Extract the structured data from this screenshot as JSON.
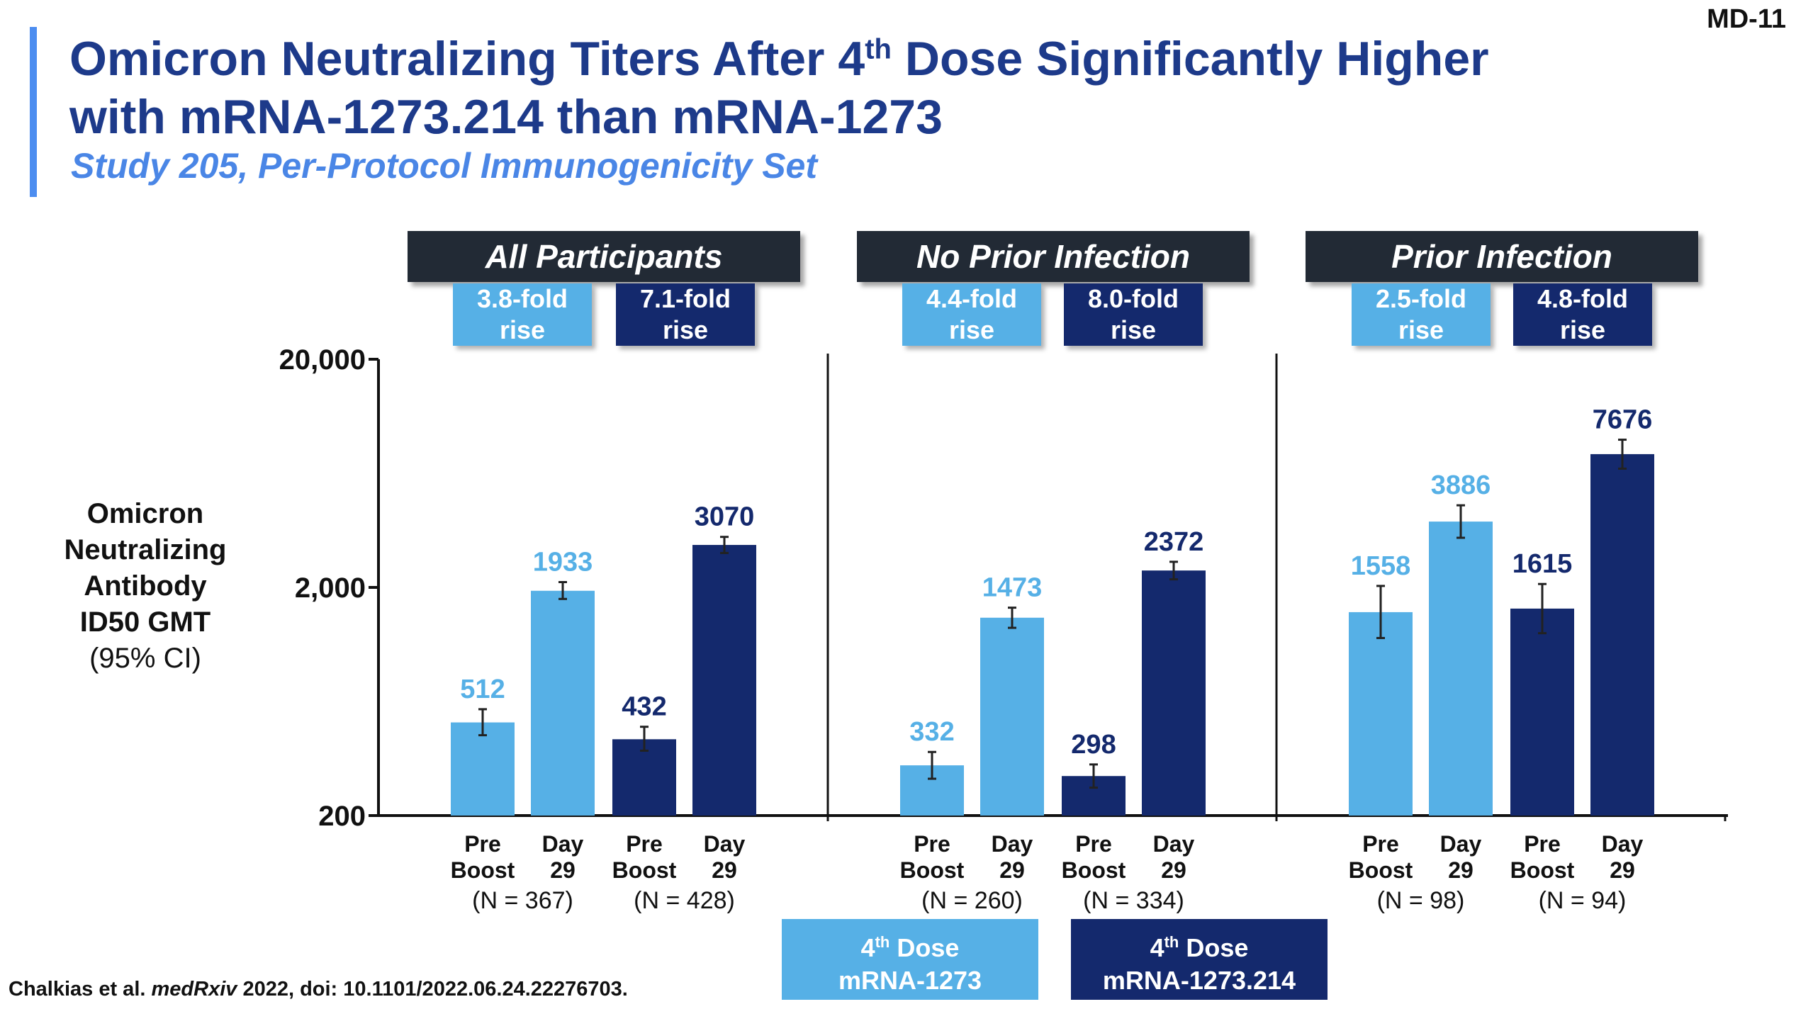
{
  "slide_id": "MD-11",
  "title": {
    "line1_pre": "Omicron Neutralizing Titers After 4",
    "line1_sup": "th",
    "line1_post": " Dose Significantly Higher",
    "line2": "with mRNA-1273.214 than mRNA-1273"
  },
  "subtitle": "Study 205, Per-Protocol Immunogenicity Set",
  "y_axis_label": {
    "lines": [
      "Omicron",
      "Neutralizing",
      "Antibody",
      "ID50 GMT"
    ],
    "ci": "(95% CI)"
  },
  "legend": {
    "light": {
      "sup_pre": "4",
      "sup": "th",
      "sup_post": " Dose",
      "line2": "mRNA-1273"
    },
    "dark": {
      "sup_pre": "4",
      "sup": "th",
      "sup_post": " Dose",
      "line2": "mRNA-1273.214"
    }
  },
  "citation": {
    "pre": "Chalkias et al. ",
    "journal": "medRxiv",
    "post": " 2022, doi: 10.1101/2022.06.24.22276703."
  },
  "colors": {
    "light": "#56b0e6",
    "dark": "#14296d",
    "header_bg": "#222a35",
    "title": "#1d3a8a",
    "subtitle": "#4a86e6"
  },
  "chart_data": {
    "type": "bar",
    "y_scale": "log",
    "ylim": [
      200,
      20000
    ],
    "yticks": [
      200,
      2000,
      20000
    ],
    "ytick_labels": [
      "200",
      "2,000",
      "20,000"
    ],
    "ylabel": "Omicron Neutralizing Antibody ID50 GMT (95% CI)",
    "panels": [
      {
        "title": "All Participants",
        "fold_rises": [
          {
            "series": "mRNA-1273",
            "line1": "3.8-fold",
            "line2": "rise"
          },
          {
            "series": "mRNA-1273.214",
            "line1": "7.1-fold",
            "line2": "rise"
          }
        ],
        "groups": [
          {
            "series": "mRNA-1273",
            "n_label": "(N = 367)",
            "bars": [
              {
                "cat1": "Pre",
                "cat2": "Boost",
                "value": 512,
                "label": "512",
                "ci": [
                  450,
                  585
                ]
              },
              {
                "cat1": "Day",
                "cat2": "29",
                "value": 1933,
                "label": "1933",
                "ci": [
                  1780,
                  2110
                ]
              }
            ]
          },
          {
            "series": "mRNA-1273.214",
            "n_label": "(N = 428)",
            "bars": [
              {
                "cat1": "Pre",
                "cat2": "Boost",
                "value": 432,
                "label": "432",
                "ci": [
                  385,
                  490
                ]
              },
              {
                "cat1": "Day",
                "cat2": "29",
                "value": 3070,
                "label": "3070",
                "ci": [
                  2830,
                  3330
                ]
              }
            ]
          }
        ]
      },
      {
        "title": "No Prior Infection",
        "fold_rises": [
          {
            "series": "mRNA-1273",
            "line1": "4.4-fold",
            "line2": "rise"
          },
          {
            "series": "mRNA-1273.214",
            "line1": "8.0-fold",
            "line2": "rise"
          }
        ],
        "groups": [
          {
            "series": "mRNA-1273",
            "n_label": "(N = 260)",
            "bars": [
              {
                "cat1": "Pre",
                "cat2": "Boost",
                "value": 332,
                "label": "332",
                "ci": [
                  290,
                  380
                ]
              },
              {
                "cat1": "Day",
                "cat2": "29",
                "value": 1473,
                "label": "1473",
                "ci": [
                  1330,
                  1630
                ]
              }
            ]
          },
          {
            "series": "mRNA-1273.214",
            "n_label": "(N = 334)",
            "bars": [
              {
                "cat1": "Pre",
                "cat2": "Boost",
                "value": 298,
                "label": "298",
                "ci": [
                  265,
                  335
                ]
              },
              {
                "cat1": "Day",
                "cat2": "29",
                "value": 2372,
                "label": "2372",
                "ci": [
                  2170,
                  2590
                ]
              }
            ]
          }
        ]
      },
      {
        "title": "Prior Infection",
        "fold_rises": [
          {
            "series": "mRNA-1273",
            "line1": "2.5-fold",
            "line2": "rise"
          },
          {
            "series": "mRNA-1273.214",
            "line1": "4.8-fold",
            "line2": "rise"
          }
        ],
        "groups": [
          {
            "series": "mRNA-1273",
            "n_label": "(N = 98)",
            "bars": [
              {
                "cat1": "Pre",
                "cat2": "Boost",
                "value": 1558,
                "label": "1558",
                "ci": [
                  1200,
                  2030
                ]
              },
              {
                "cat1": "Day",
                "cat2": "29",
                "value": 3886,
                "label": "3886",
                "ci": [
                  3300,
                  4580
                ]
              }
            ]
          },
          {
            "series": "mRNA-1273.214",
            "n_label": "(N = 94)",
            "bars": [
              {
                "cat1": "Pre",
                "cat2": "Boost",
                "value": 1615,
                "label": "1615",
                "ci": [
                  1260,
                  2070
                ]
              },
              {
                "cat1": "Day",
                "cat2": "29",
                "value": 7676,
                "label": "7676",
                "ci": [
                  6630,
                  8880
                ]
              }
            ]
          }
        ]
      }
    ]
  }
}
